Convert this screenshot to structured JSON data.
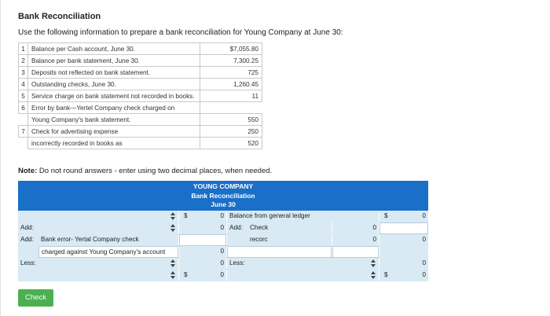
{
  "title": "Bank Reconciliation",
  "intro": "Use the following information to prepare a bank reconciliation for Young Company at June 30:",
  "info_rows": [
    {
      "num": "1",
      "desc": "Balance per Cash account, June 30.",
      "val": "$7,055.80"
    },
    {
      "num": "2",
      "desc": "Balance per bank statement, June 30.",
      "val": "7,300.25"
    },
    {
      "num": "3",
      "desc": "Deposits not reflected on bank statement.",
      "val": "725"
    },
    {
      "num": "4",
      "desc": "Outstanding checks, June 30.",
      "val": "1,260.45"
    },
    {
      "num": "5",
      "desc": "Service charge on bank statement not recorded in books.",
      "val": "11"
    },
    {
      "num": "6",
      "desc": "Error by bank—Yertel Company check charged on",
      "val": ""
    },
    {
      "num": "",
      "desc": "Young Company's bank statement.",
      "val": "550"
    },
    {
      "num": "7",
      "desc": "Check for advertising expense",
      "val": "250"
    },
    {
      "num": "",
      "desc": "incorrectly recorded in books as",
      "val": "520"
    }
  ],
  "note_bold": "Note:",
  "note_text": " Do not round answers - enter using two decimal places, when needed.",
  "worksheet": {
    "company": "YOUNG COMPANY",
    "heading": "Bank Reconciliation",
    "date": "June 30",
    "row1": {
      "dollar_left": "$",
      "amount_left": "0",
      "right_label": "Balance from general ledger",
      "dollar_right": "$",
      "amount_right": "0"
    },
    "row2": {
      "left_label": "Add:",
      "amount_left": "0",
      "add_label": "Add:",
      "right_desc": "Check",
      "right_amount": "0"
    },
    "row3": {
      "left_label": "Add:",
      "left_desc": "Bank error- Yertal Company check",
      "right_desc": "recorc",
      "right_amount": "0",
      "amount_right": "0"
    },
    "row4": {
      "left_desc": "charged against Young Company's account",
      "amount_left": "0"
    },
    "row5": {
      "left_label": "Less:",
      "amount_left": "0",
      "less_label": "Less:",
      "amount_right": "0"
    },
    "row6": {
      "dollar_left": "$",
      "amount_left": "0",
      "dollar_right": "$",
      "amount_right": "0"
    }
  },
  "check_label": "Check"
}
